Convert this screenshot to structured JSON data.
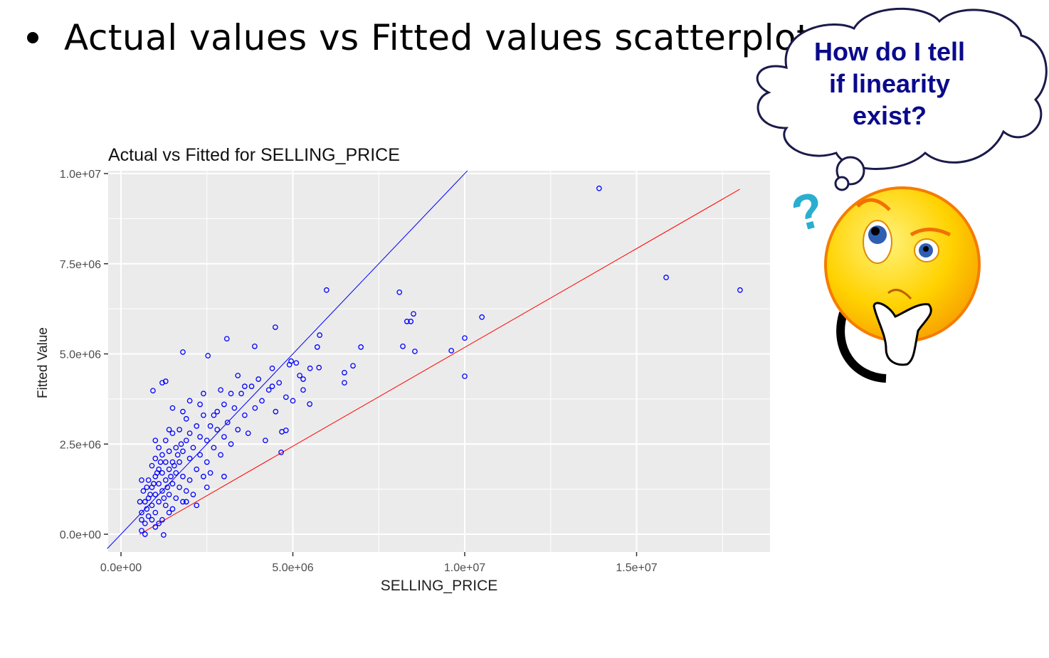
{
  "slide": {
    "title": "Actual values vs Fitted values scatterplot",
    "thought_bubble": [
      "How do I tell",
      "if linearity",
      "exist?"
    ]
  },
  "colors": {
    "points": "#0000ff",
    "identity_line": "#0000ff",
    "fit_line": "#ff0000",
    "panel": "#ebebeb",
    "thought_text": "#0a0a8c"
  },
  "chart_data": {
    "type": "scatter",
    "title": "Actual vs Fitted for SELLING_PRICE",
    "xlabel": "SELLING_PRICE",
    "ylabel": "Fitted Value",
    "values_in": "millions",
    "xlim": [
      -0.4,
      18.8
    ],
    "ylim": [
      -0.49,
      10.08
    ],
    "x_ticks": [
      {
        "value": 0,
        "label": "0.0e+00"
      },
      {
        "value": 5,
        "label": "5.0e+06"
      },
      {
        "value": 10,
        "label": "1.0e+07"
      },
      {
        "value": 15,
        "label": "1.5e+07"
      }
    ],
    "y_ticks": [
      {
        "value": 0,
        "label": "0.0e+00"
      },
      {
        "value": 2.5,
        "label": "2.5e+06"
      },
      {
        "value": 5,
        "label": "5.0e+06"
      },
      {
        "value": 7.5,
        "label": "7.5e+06"
      },
      {
        "value": 10,
        "label": "1.0e+07"
      }
    ],
    "grid": true,
    "lines": [
      {
        "name": "identity (y = x)",
        "color": "#0000ff",
        "slope": 1.0,
        "intercept": 0.0,
        "x_range": [
          -0.4,
          10.08
        ]
      },
      {
        "name": "fit",
        "color": "#ff0000",
        "slope": 0.548,
        "intercept": -0.3,
        "x_range": [
          0.54,
          18.0
        ]
      }
    ],
    "points": [
      [
        13.91,
        9.59
      ],
      [
        15.86,
        7.12
      ],
      [
        18.01,
        6.77
      ],
      [
        5.98,
        6.77
      ],
      [
        8.1,
        6.71
      ],
      [
        8.51,
        6.11
      ],
      [
        8.32,
        5.9
      ],
      [
        8.43,
        5.9
      ],
      [
        10.5,
        6.02
      ],
      [
        10.0,
        5.44
      ],
      [
        8.2,
        5.21
      ],
      [
        8.55,
        5.07
      ],
      [
        9.61,
        5.09
      ],
      [
        10.0,
        4.38
      ],
      [
        6.98,
        5.19
      ],
      [
        5.78,
        5.52
      ],
      [
        5.71,
        5.19
      ],
      [
        4.49,
        5.74
      ],
      [
        3.89,
        5.21
      ],
      [
        3.08,
        5.42
      ],
      [
        1.8,
        5.05
      ],
      [
        2.53,
        4.95
      ],
      [
        0.93,
        3.98
      ],
      [
        1.3,
        4.24
      ],
      [
        6.75,
        4.67
      ],
      [
        6.5,
        4.48
      ],
      [
        6.5,
        4.2
      ],
      [
        5.49,
        3.61
      ],
      [
        4.66,
        2.27
      ],
      [
        4.8,
        2.88
      ],
      [
        4.68,
        2.84
      ],
      [
        1.24,
        -0.02
      ],
      [
        5.76,
        4.62
      ],
      [
        5.1,
        4.75
      ],
      [
        4.95,
        4.8
      ],
      [
        4.4,
        4.1
      ],
      [
        5.3,
        4.3
      ],
      [
        0.6,
        0.1
      ],
      [
        0.7,
        0.3
      ],
      [
        0.6,
        0.6
      ],
      [
        0.55,
        0.9
      ],
      [
        0.65,
        1.2
      ],
      [
        0.8,
        0.5
      ],
      [
        0.8,
        1.0
      ],
      [
        0.8,
        1.5
      ],
      [
        0.9,
        0.8
      ],
      [
        0.9,
        1.3
      ],
      [
        0.9,
        1.9
      ],
      [
        1.0,
        0.6
      ],
      [
        1.0,
        1.1
      ],
      [
        1.0,
        1.6
      ],
      [
        1.0,
        2.1
      ],
      [
        1.1,
        0.9
      ],
      [
        1.1,
        1.4
      ],
      [
        1.1,
        1.8
      ],
      [
        1.1,
        2.4
      ],
      [
        1.2,
        0.4
      ],
      [
        1.2,
        1.2
      ],
      [
        1.2,
        1.7
      ],
      [
        1.2,
        2.2
      ],
      [
        1.3,
        0.8
      ],
      [
        1.3,
        1.5
      ],
      [
        1.3,
        2.0
      ],
      [
        1.3,
        2.6
      ],
      [
        1.4,
        1.1
      ],
      [
        1.4,
        1.8
      ],
      [
        1.4,
        2.3
      ],
      [
        1.5,
        0.7
      ],
      [
        1.5,
        1.4
      ],
      [
        1.5,
        2.0
      ],
      [
        1.5,
        2.8
      ],
      [
        1.6,
        1.0
      ],
      [
        1.6,
        1.7
      ],
      [
        1.6,
        2.4
      ],
      [
        1.7,
        1.3
      ],
      [
        1.7,
        2.0
      ],
      [
        1.7,
        2.9
      ],
      [
        1.8,
        0.9
      ],
      [
        1.8,
        1.6
      ],
      [
        1.8,
        2.3
      ],
      [
        1.9,
        1.2
      ],
      [
        1.9,
        2.6
      ],
      [
        1.9,
        3.2
      ],
      [
        2.0,
        1.5
      ],
      [
        2.0,
        2.1
      ],
      [
        2.0,
        2.8
      ],
      [
        2.1,
        1.1
      ],
      [
        2.1,
        2.4
      ],
      [
        2.2,
        1.8
      ],
      [
        2.2,
        3.0
      ],
      [
        2.3,
        2.2
      ],
      [
        2.3,
        2.7
      ],
      [
        2.4,
        1.6
      ],
      [
        2.4,
        3.3
      ],
      [
        2.5,
        2.0
      ],
      [
        2.5,
        2.6
      ],
      [
        2.6,
        3.0
      ],
      [
        2.6,
        1.7
      ],
      [
        2.7,
        2.4
      ],
      [
        2.8,
        2.9
      ],
      [
        2.8,
        3.4
      ],
      [
        2.9,
        2.2
      ],
      [
        3.0,
        2.7
      ],
      [
        3.0,
        3.6
      ],
      [
        3.1,
        3.1
      ],
      [
        3.2,
        2.5
      ],
      [
        3.3,
        3.5
      ],
      [
        3.4,
        2.9
      ],
      [
        3.5,
        3.9
      ],
      [
        3.6,
        3.3
      ],
      [
        3.7,
        2.8
      ],
      [
        3.8,
        4.1
      ],
      [
        3.9,
        3.5
      ],
      [
        4.0,
        4.3
      ],
      [
        4.1,
        3.7
      ],
      [
        4.2,
        2.6
      ],
      [
        4.3,
        4.0
      ],
      [
        4.4,
        4.6
      ],
      [
        4.5,
        3.4
      ],
      [
        4.6,
        4.2
      ],
      [
        4.8,
        3.8
      ],
      [
        4.9,
        4.7
      ],
      [
        5.0,
        3.7
      ],
      [
        5.2,
        4.4
      ],
      [
        5.3,
        4.0
      ],
      [
        5.5,
        4.6
      ],
      [
        1.2,
        4.2
      ],
      [
        1.5,
        3.5
      ],
      [
        2.0,
        3.7
      ],
      [
        2.4,
        3.9
      ],
      [
        2.9,
        4.0
      ],
      [
        3.4,
        4.4
      ],
      [
        1.0,
        0.2
      ],
      [
        0.7,
        0.0
      ],
      [
        2.5,
        1.3
      ],
      [
        3.0,
        1.6
      ],
      [
        2.2,
        0.8
      ],
      [
        0.6,
        0.4
      ],
      [
        0.75,
        0.7
      ],
      [
        0.85,
        1.1
      ],
      [
        0.95,
        1.4
      ],
      [
        1.05,
        1.7
      ],
      [
        1.15,
        2.0
      ],
      [
        1.25,
        1.0
      ],
      [
        1.35,
        1.3
      ],
      [
        1.45,
        1.6
      ],
      [
        1.55,
        1.9
      ],
      [
        1.65,
        2.2
      ],
      [
        1.75,
        2.5
      ],
      [
        0.7,
        0.9
      ],
      [
        0.75,
        1.3
      ],
      [
        0.6,
        1.5
      ],
      [
        1.0,
        2.6
      ],
      [
        1.4,
        2.9
      ],
      [
        1.8,
        3.4
      ],
      [
        2.3,
        3.6
      ],
      [
        2.7,
        3.3
      ],
      [
        3.2,
        3.9
      ],
      [
        3.6,
        4.1
      ],
      [
        0.9,
        0.4
      ],
      [
        1.4,
        0.6
      ],
      [
        1.9,
        0.9
      ],
      [
        1.1,
        0.3
      ]
    ]
  }
}
